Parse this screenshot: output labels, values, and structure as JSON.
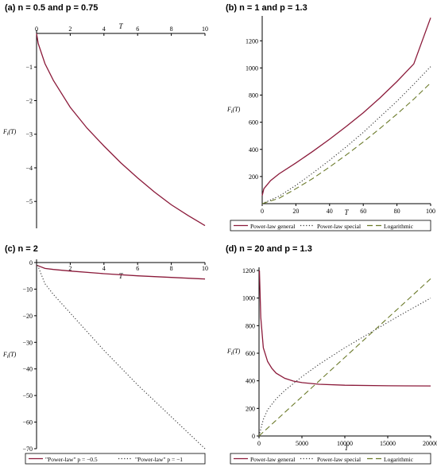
{
  "chart_data": [
    {
      "type": "line",
      "title": "(a) n = 0.5 and p = 0.75",
      "xlabel": "T",
      "ylabel": "F_t(T)",
      "xlim": [
        0,
        10
      ],
      "ylim": [
        -5.8,
        0
      ],
      "x_ticks": [
        0,
        2,
        4,
        6,
        8,
        10
      ],
      "y_ticks": [
        -1,
        -2,
        -3,
        -4,
        -5
      ],
      "x_axis_position": "top",
      "grid": false,
      "legend": "none",
      "series": [
        {
          "color": "#8b1a3a",
          "style": "solid",
          "x": [
            0,
            0.1,
            0.5,
            1,
            2,
            3,
            4,
            5,
            6,
            7,
            8,
            9,
            10
          ],
          "y": [
            0,
            -0.3,
            -0.9,
            -1.4,
            -2.2,
            -2.82,
            -3.35,
            -3.85,
            -4.3,
            -4.72,
            -5.1,
            -5.42,
            -5.72
          ]
        }
      ]
    },
    {
      "type": "line",
      "title": "(b) n = 1 and p = 1.3",
      "xlabel": "T",
      "ylabel": "F_t(T)",
      "xlim": [
        0,
        100
      ],
      "ylim": [
        0,
        1360
      ],
      "x_ticks": [
        0,
        20,
        40,
        60,
        80,
        100
      ],
      "y_ticks": [
        200,
        400,
        600,
        800,
        1000,
        1200
      ],
      "grid": false,
      "legend": "bottom",
      "series": [
        {
          "name": "Power-law general",
          "color": "#8b1a3a",
          "style": "solid",
          "x": [
            0,
            1,
            5,
            10,
            20,
            30,
            40,
            50,
            60,
            70,
            80,
            90,
            100
          ],
          "y": [
            60,
            110,
            170,
            220,
            300,
            385,
            475,
            570,
            670,
            780,
            900,
            1030,
            1370
          ]
        },
        {
          "name": "Power-law special",
          "color": "#333333",
          "style": "dotted",
          "x": [
            0,
            10,
            20,
            30,
            40,
            50,
            60,
            70,
            80,
            90,
            100
          ],
          "y": [
            0,
            55,
            135,
            225,
            320,
            420,
            525,
            640,
            755,
            880,
            1010
          ]
        },
        {
          "name": "Logarithmic",
          "color": "#6b7a2a",
          "style": "dashed",
          "x": [
            0,
            10,
            20,
            30,
            40,
            50,
            60,
            70,
            80,
            90,
            100
          ],
          "y": [
            0,
            40,
            110,
            185,
            270,
            360,
            455,
            555,
            660,
            770,
            890
          ]
        }
      ]
    },
    {
      "type": "line",
      "title": "(c) n = 2",
      "xlabel": "T",
      "ylabel": "F_t(T)",
      "xlim": [
        0,
        10
      ],
      "ylim": [
        -70,
        0
      ],
      "x_ticks": [
        2,
        4,
        6,
        8,
        10
      ],
      "y_ticks": [
        0,
        -10,
        -20,
        -30,
        -40,
        -50,
        -60,
        -70
      ],
      "x_axis_position": "top",
      "grid": false,
      "legend": "bottom",
      "series": [
        {
          "name": "\"Power-law\" p = −0.5",
          "color": "#8b1a3a",
          "style": "solid",
          "x": [
            0,
            0.5,
            1,
            2,
            4,
            6,
            8,
            10
          ],
          "y": [
            -1,
            -2.2,
            -2.6,
            -3.2,
            -4.2,
            -5.0,
            -5.6,
            -6.2
          ]
        },
        {
          "name": "\"Power-law\" p = −1",
          "color": "#333333",
          "style": "dotted",
          "x": [
            0,
            0.5,
            1,
            2,
            4,
            6,
            8,
            10
          ],
          "y": [
            0,
            -8,
            -12,
            -19,
            -33,
            -46,
            -58,
            -70
          ]
        }
      ]
    },
    {
      "type": "line",
      "title": "(d) n = 20 and p = 1.3",
      "xlabel": "T",
      "ylabel": "F_t(T)",
      "xlim": [
        0,
        20000
      ],
      "ylim": [
        0,
        1200
      ],
      "x_ticks": [
        0,
        5000,
        10000,
        15000,
        20000
      ],
      "y_ticks": [
        0,
        200,
        400,
        600,
        800,
        1000,
        1200
      ],
      "grid": false,
      "legend": "bottom",
      "series": [
        {
          "name": "Power-law general",
          "color": "#8b1a3a",
          "style": "solid",
          "x": [
            50,
            200,
            500,
            1000,
            1500,
            2000,
            3000,
            4000,
            5000,
            7000,
            10000,
            15000,
            20000
          ],
          "y": [
            1200,
            860,
            640,
            540,
            490,
            455,
            418,
            398,
            387,
            375,
            368,
            364,
            363
          ]
        },
        {
          "name": "Power-law special",
          "color": "#333333",
          "style": "dotted",
          "x": [
            0,
            500,
            1000,
            2000,
            3000,
            5000,
            7000,
            10000,
            13000,
            16000,
            20000
          ],
          "y": [
            0,
            120,
            190,
            270,
            330,
            430,
            520,
            640,
            750,
            860,
            1000
          ]
        },
        {
          "name": "Logarithmic",
          "color": "#6b7a2a",
          "style": "dashed",
          "x": [
            0,
            20000
          ],
          "y": [
            0,
            1140
          ]
        }
      ]
    }
  ]
}
